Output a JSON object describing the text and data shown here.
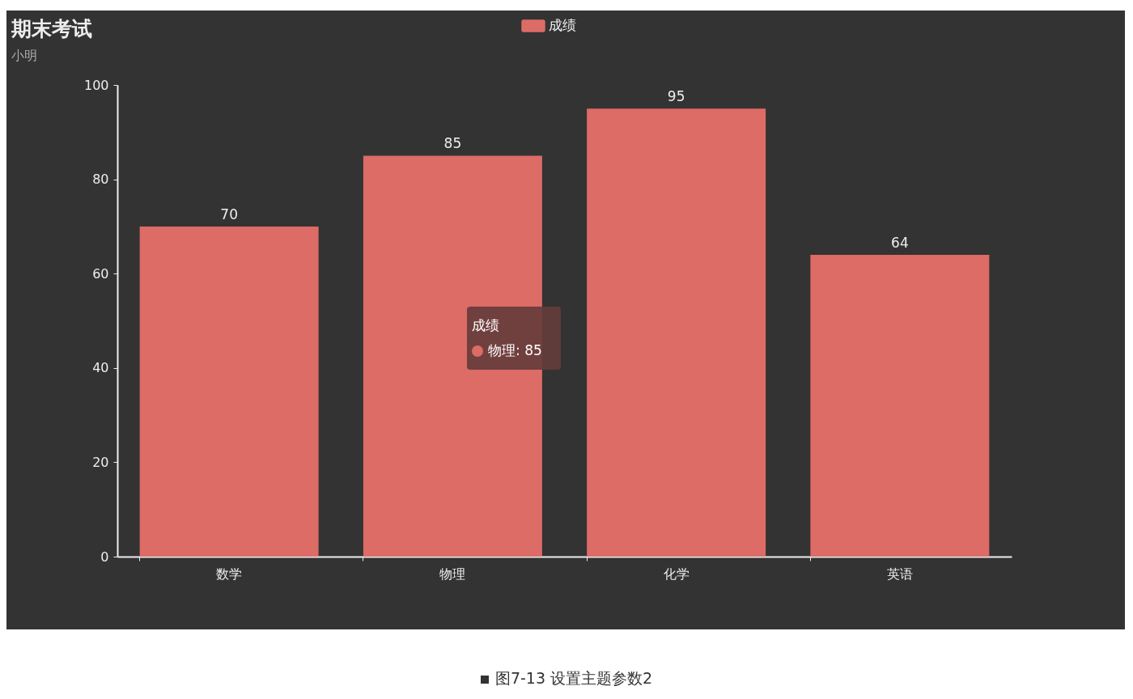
{
  "chart_data": {
    "type": "bar",
    "title": "期末考试",
    "subtitle": "小明",
    "categories": [
      "数学",
      "物理",
      "化学",
      "英语"
    ],
    "series": [
      {
        "name": "成绩",
        "color": "#dd6b66",
        "values": [
          70,
          85,
          95,
          64
        ]
      }
    ],
    "ylim": [
      0,
      100
    ],
    "yticks": [
      0,
      20,
      40,
      60,
      80,
      100
    ],
    "grid": false,
    "legend": "top",
    "data_labels": true,
    "annotations": [
      "成绩",
      "物理: 85",
      "图7-13 设置主题参数2"
    ]
  }
}
